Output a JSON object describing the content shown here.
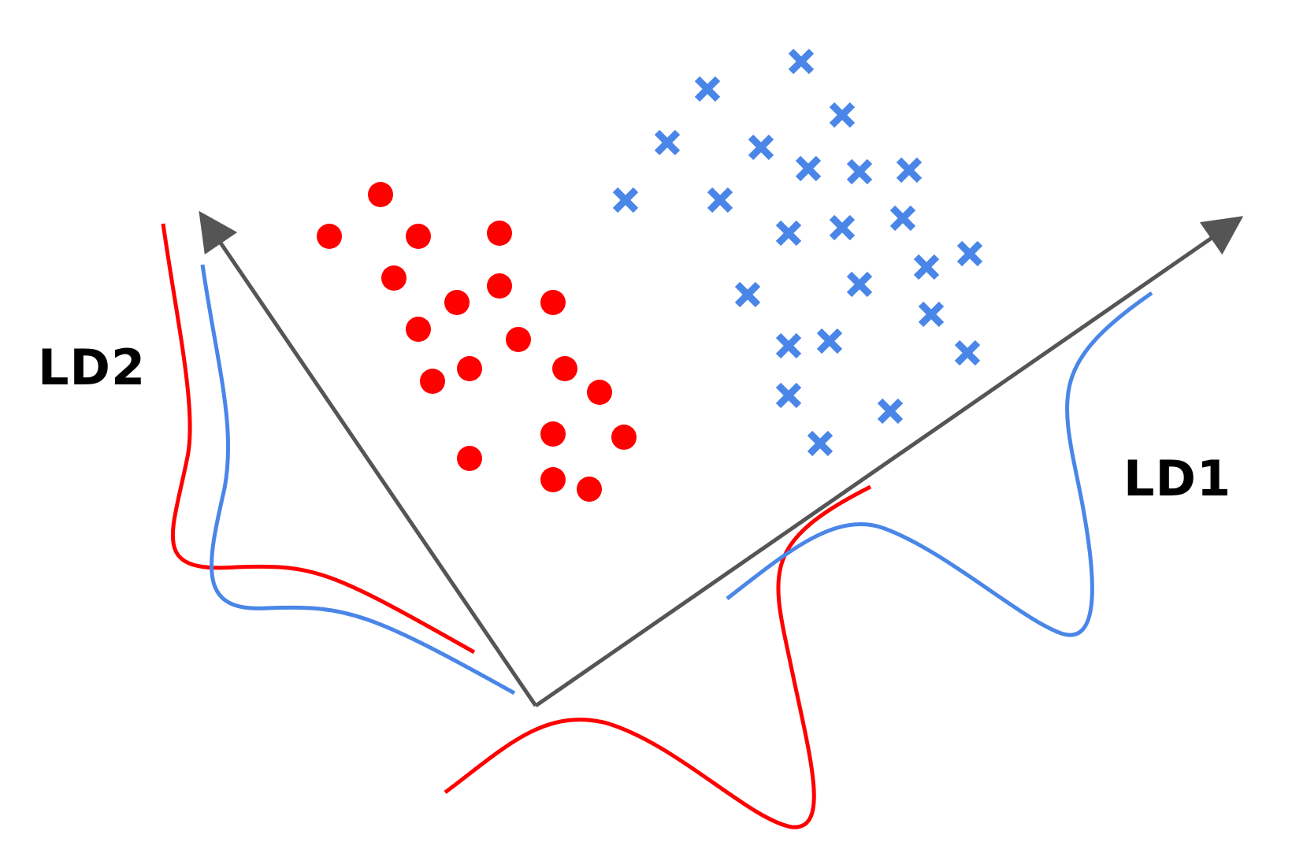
{
  "axes": {
    "ld1_label": "LD1",
    "ld2_label": "LD2"
  },
  "colors": {
    "class_a": "#ff0000",
    "class_b": "#4a86e8",
    "axis": "#555555",
    "label": "#000000"
  },
  "markers": {
    "class_a": "circle",
    "class_b": "cross"
  }
}
